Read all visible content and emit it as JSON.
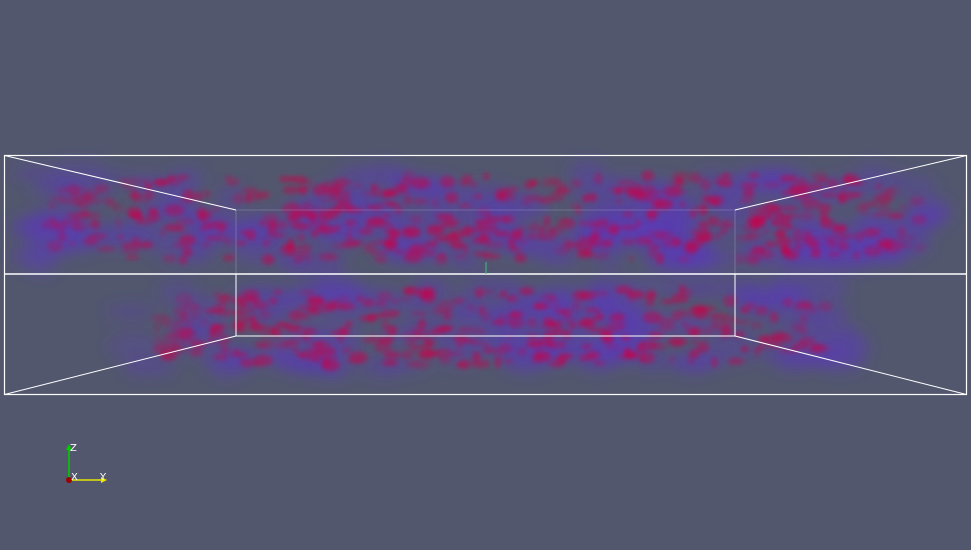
{
  "view": {
    "background": "#52576e",
    "outline_color": "#ffffff",
    "volume_colors": {
      "dense": "#c8004a",
      "sparse": "#5a3ab8"
    }
  },
  "orientation_axes": {
    "z_label": "Z",
    "x_label": "X",
    "y_label": "Y",
    "z_color": "#00cc00",
    "x_color": "#cc0000",
    "y_color": "#e6e600"
  }
}
